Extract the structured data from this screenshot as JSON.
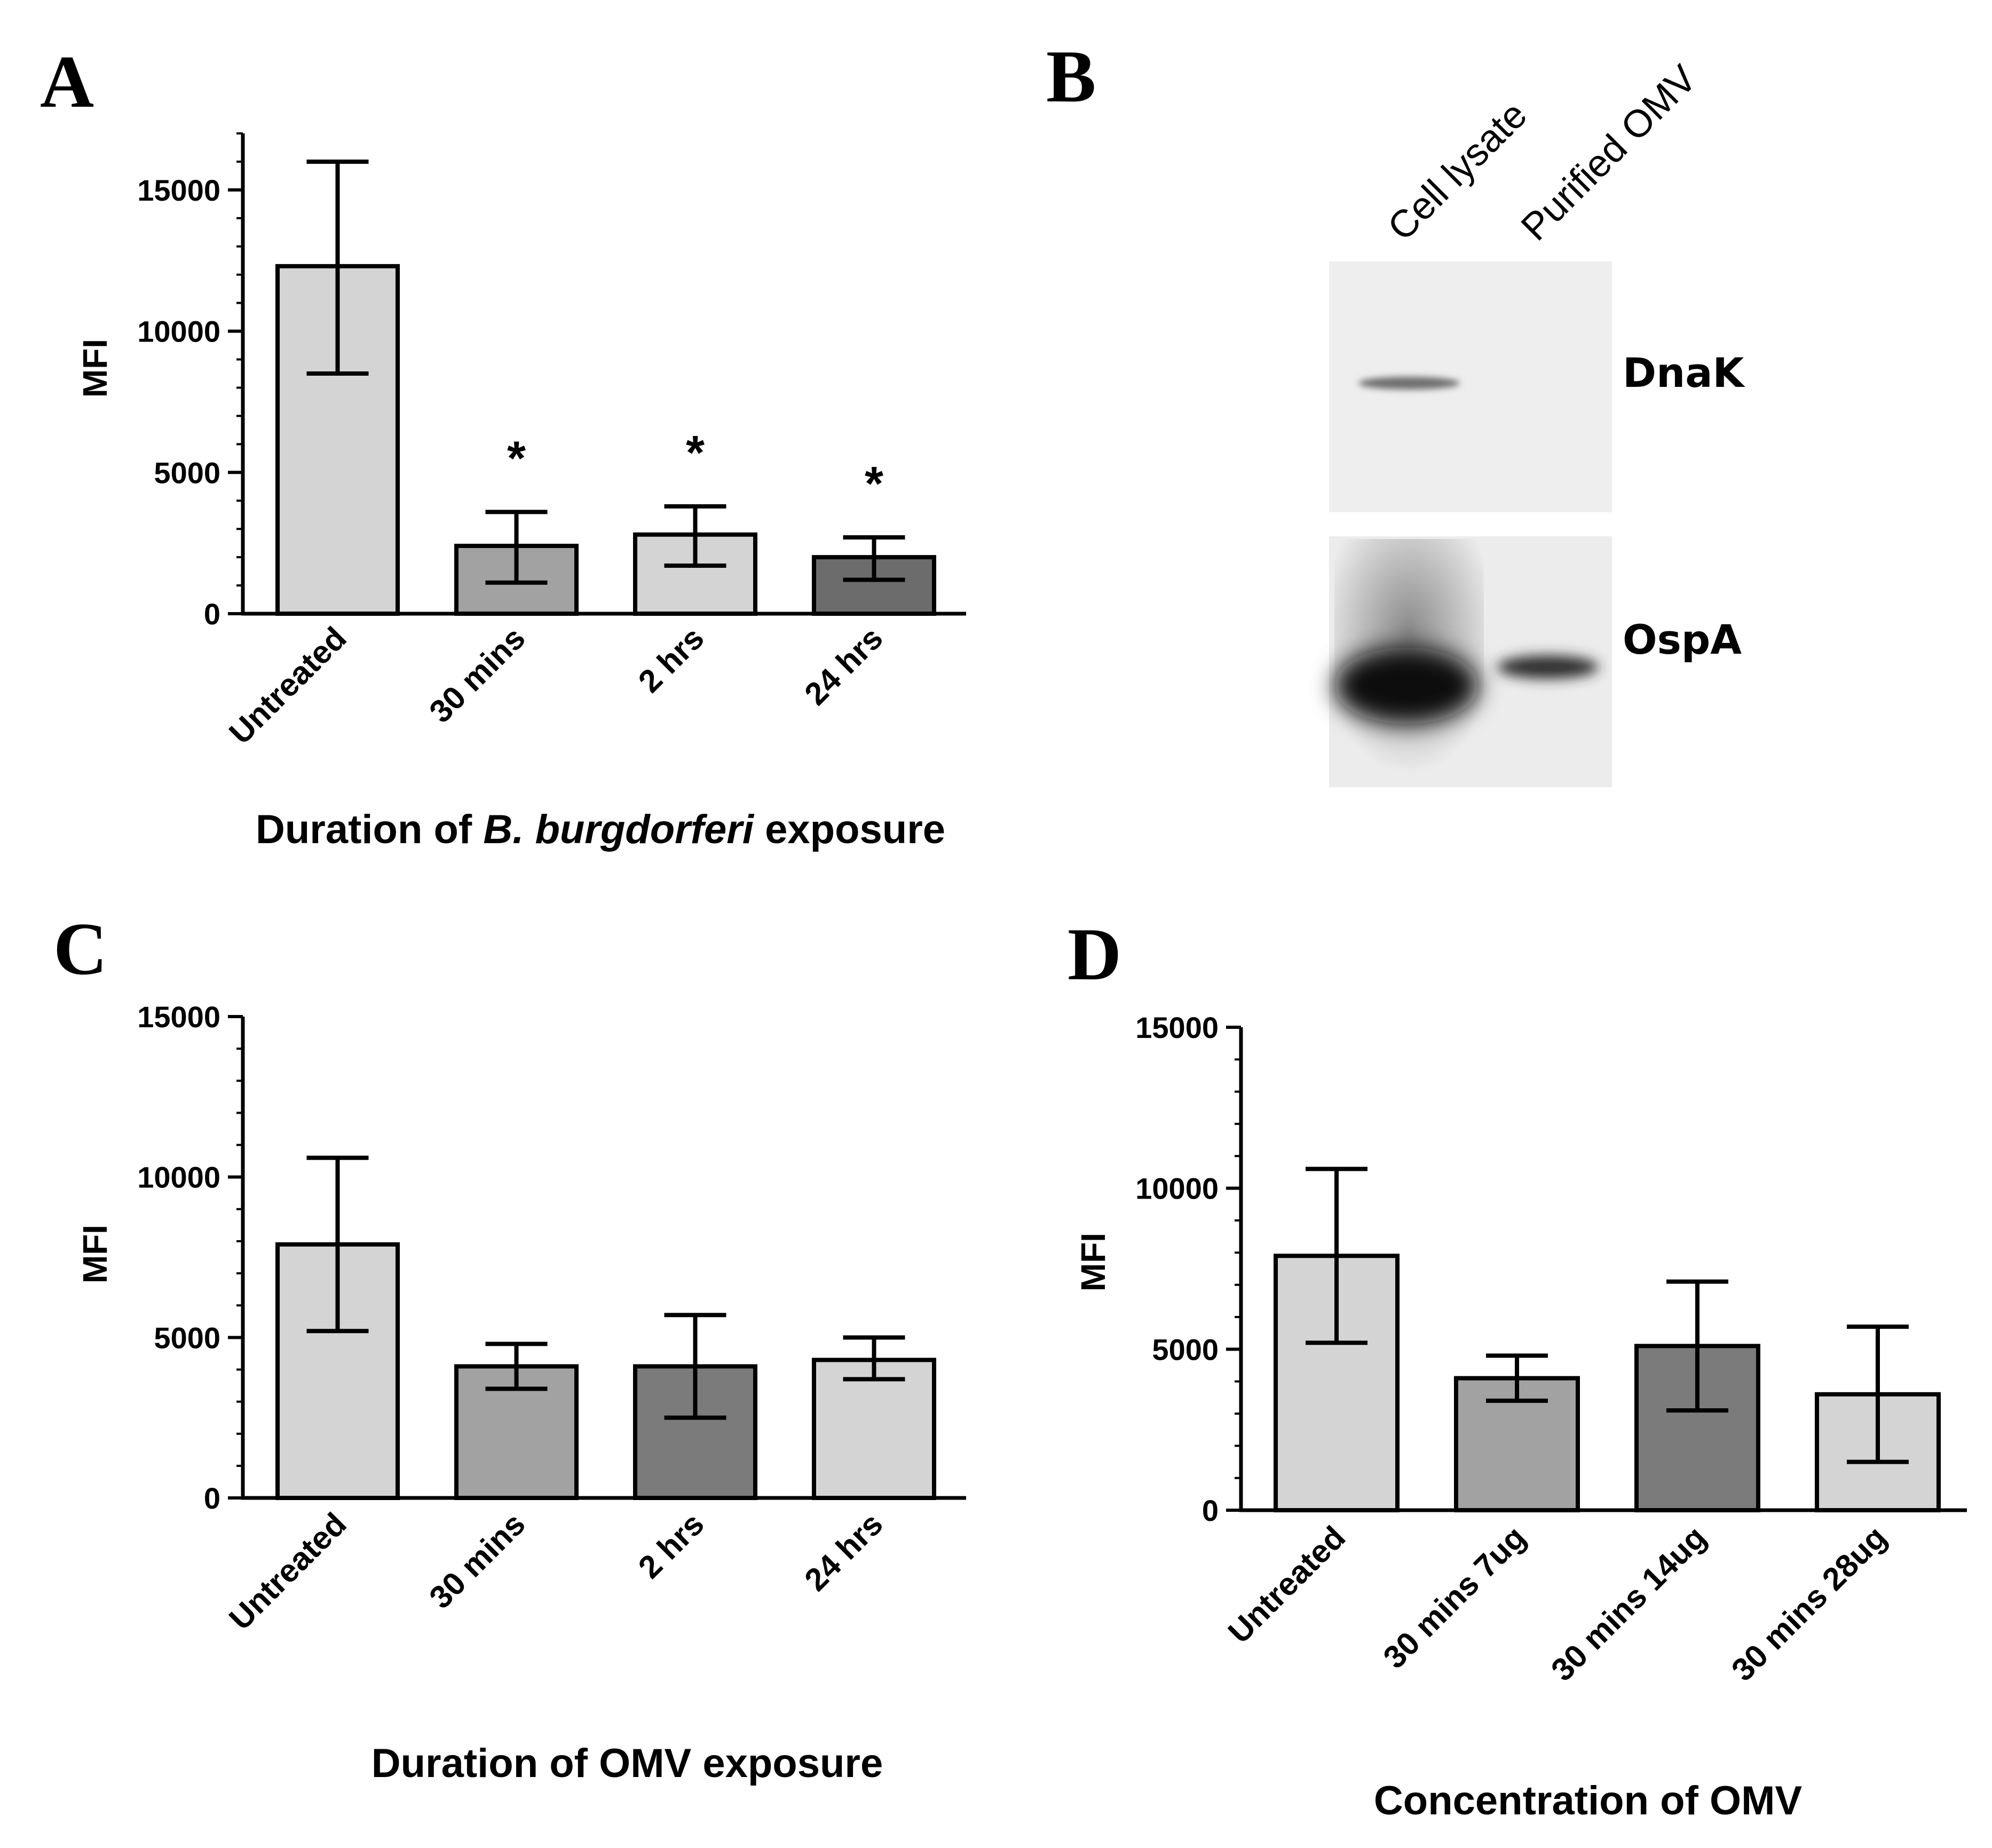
{
  "panels": {
    "a": {
      "letter": "A"
    },
    "b": {
      "letter": "B"
    },
    "c": {
      "letter": "C"
    },
    "d": {
      "letter": "D"
    }
  },
  "chart_data": [
    {
      "id": "a",
      "type": "bar",
      "title": "",
      "xlabel": [
        "Duration of ",
        "B. burgdorferi",
        " exposure"
      ],
      "ylabel": "MFI",
      "ylim": [
        0,
        17000
      ],
      "yticks": [
        0,
        5000,
        10000,
        15000
      ],
      "categories": [
        "Untreated",
        "30 mins",
        "2 hrs",
        "24 hrs"
      ],
      "values": [
        12300,
        2400,
        2800,
        2000
      ],
      "error_low": [
        8500,
        1100,
        1700,
        1200
      ],
      "error_high": [
        16000,
        3600,
        3800,
        2700
      ],
      "annotations": [
        "",
        "*",
        "*",
        "*"
      ],
      "bar_colors": [
        "#d4d4d4",
        "#a2a2a2",
        "#d4d4d4",
        "#6c6c6c"
      ],
      "grid": false
    },
    {
      "id": "c",
      "type": "bar",
      "title": "",
      "xlabel": [
        "Duration of OMV exposure"
      ],
      "ylabel": "MFI",
      "ylim": [
        0,
        15000
      ],
      "yticks": [
        0,
        5000,
        10000,
        15000
      ],
      "categories": [
        "Untreated",
        "30 mins",
        "2 hrs",
        "24 hrs"
      ],
      "values": [
        7900,
        4100,
        4100,
        4300
      ],
      "error_low": [
        5200,
        3400,
        2500,
        3700
      ],
      "error_high": [
        10600,
        4800,
        5700,
        5000
      ],
      "annotations": [
        "",
        "",
        "",
        ""
      ],
      "bar_colors": [
        "#d4d4d4",
        "#a2a2a2",
        "#7b7b7b",
        "#d4d4d4"
      ],
      "grid": false
    },
    {
      "id": "d",
      "type": "bar",
      "title": "",
      "xlabel": [
        "Concentration of OMV"
      ],
      "ylabel": "MFI",
      "ylim": [
        0,
        15000
      ],
      "yticks": [
        0,
        5000,
        10000,
        15000
      ],
      "categories": [
        "Untreated",
        "30 mins 7ug",
        "30 mins 14ug",
        "30 mins 28ug"
      ],
      "values": [
        7900,
        4100,
        5100,
        3600
      ],
      "error_low": [
        5200,
        3400,
        3100,
        1500
      ],
      "error_high": [
        10600,
        4800,
        7100,
        5700
      ],
      "annotations": [
        "",
        "",
        "",
        ""
      ],
      "bar_colors": [
        "#d4d4d4",
        "#a2a2a2",
        "#7b7b7b",
        "#d4d4d4"
      ],
      "grid": false
    }
  ],
  "blot": {
    "lanes": [
      "Cell lysate",
      "Purified OMV"
    ],
    "bands": [
      "DnaK",
      "OspA"
    ]
  }
}
